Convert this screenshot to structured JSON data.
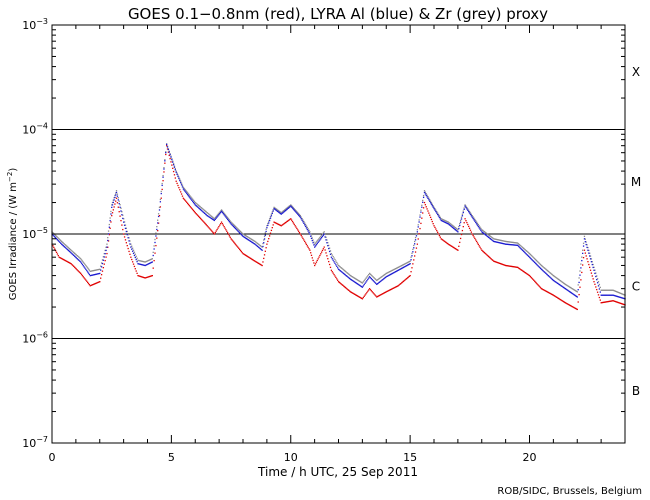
{
  "chart_data": {
    "type": "line",
    "title": "GOES 0.1−0.8nm (red), LYRA Al (blue) & Zr (grey) proxy",
    "xlabel": "Time / h UTC, 25 Sep 2011",
    "ylabel_parts": [
      "GOES Irradiance / (W m",
      "−2",
      ")"
    ],
    "credit": "ROB/SIDC, Brussels, Belgium",
    "x_range": [
      0,
      24
    ],
    "y_range_log10": [
      -7,
      -3
    ],
    "x_ticks": [
      {
        "value": 0,
        "label": "0"
      },
      {
        "value": 5,
        "label": "5"
      },
      {
        "value": 10,
        "label": "10"
      },
      {
        "value": 15,
        "label": "15"
      },
      {
        "value": 20,
        "label": "20"
      }
    ],
    "y_ticks": [
      {
        "exp": -3,
        "base": "10",
        "sup": "−3"
      },
      {
        "exp": -4,
        "base": "10",
        "sup": "−4"
      },
      {
        "exp": -5,
        "base": "10",
        "sup": "−5"
      },
      {
        "exp": -6,
        "base": "10",
        "sup": "−6"
      },
      {
        "exp": -7,
        "base": "10",
        "sup": "−7"
      }
    ],
    "threshold_lines_log10": [
      -4,
      -5,
      -6
    ],
    "flare_classes": [
      {
        "label": "X",
        "log10": -3.45
      },
      {
        "label": "M",
        "log10": -4.5
      },
      {
        "label": "C",
        "log10": -5.5
      },
      {
        "label": "B",
        "log10": -6.5
      }
    ],
    "series": [
      {
        "name": "GOES 0.1-0.8nm",
        "color": "#e00000",
        "points": [
          [
            0,
            8e-06
          ],
          [
            0.3,
            6e-06
          ],
          [
            0.8,
            5.2e-06
          ],
          [
            1.2,
            4.2e-06
          ],
          [
            1.6,
            3.2e-06
          ],
          [
            2.0,
            3.5e-06
          ],
          [
            2.3,
            6.5e-06
          ],
          [
            2.5,
            1.5e-05
          ],
          [
            2.7,
            2.2e-05
          ],
          [
            3.0,
            1e-05
          ],
          [
            3.3,
            6e-06
          ],
          [
            3.6,
            4e-06
          ],
          [
            3.9,
            3.8e-06
          ],
          [
            4.2,
            4e-06
          ],
          [
            4.5,
            1.5e-05
          ],
          [
            4.8,
            7e-05
          ],
          [
            5.2,
            3.2e-05
          ],
          [
            5.5,
            2.2e-05
          ],
          [
            6.0,
            1.6e-05
          ],
          [
            6.5,
            1.2e-05
          ],
          [
            6.8,
            1e-05
          ],
          [
            7.1,
            1.3e-05
          ],
          [
            7.5,
            9e-06
          ],
          [
            8.0,
            6.5e-06
          ],
          [
            8.5,
            5.5e-06
          ],
          [
            8.8,
            5e-06
          ],
          [
            9.0,
            8e-06
          ],
          [
            9.3,
            1.3e-05
          ],
          [
            9.6,
            1.2e-05
          ],
          [
            10.0,
            1.4e-05
          ],
          [
            10.4,
            1e-05
          ],
          [
            10.8,
            7e-06
          ],
          [
            11.0,
            5e-06
          ],
          [
            11.4,
            7.5e-06
          ],
          [
            11.7,
            4.5e-06
          ],
          [
            12.0,
            3.5e-06
          ],
          [
            12.5,
            2.8e-06
          ],
          [
            13.0,
            2.4e-06
          ],
          [
            13.3,
            3e-06
          ],
          [
            13.6,
            2.5e-06
          ],
          [
            14.0,
            2.8e-06
          ],
          [
            14.5,
            3.2e-06
          ],
          [
            15.0,
            4e-06
          ],
          [
            15.3,
            8e-06
          ],
          [
            15.6,
            2e-05
          ],
          [
            16.0,
            1.2e-05
          ],
          [
            16.3,
            9e-06
          ],
          [
            16.6,
            8e-06
          ],
          [
            17.0,
            7e-06
          ],
          [
            17.3,
            1.4e-05
          ],
          [
            17.6,
            1e-05
          ],
          [
            18.0,
            7e-06
          ],
          [
            18.5,
            5.5e-06
          ],
          [
            19.0,
            5e-06
          ],
          [
            19.5,
            4.8e-06
          ],
          [
            20.0,
            4e-06
          ],
          [
            20.5,
            3e-06
          ],
          [
            21.0,
            2.6e-06
          ],
          [
            21.5,
            2.2e-06
          ],
          [
            22.0,
            1.9e-06
          ],
          [
            22.3,
            7e-06
          ],
          [
            22.7,
            3.5e-06
          ],
          [
            23.0,
            2.2e-06
          ],
          [
            23.5,
            2.3e-06
          ],
          [
            24.0,
            2.1e-06
          ]
        ]
      },
      {
        "name": "LYRA Zr proxy",
        "color": "#8c8c8c",
        "points": [
          [
            0,
            1.05e-05
          ],
          [
            0.4,
            8.5e-06
          ],
          [
            0.8,
            7e-06
          ],
          [
            1.2,
            5.8e-06
          ],
          [
            1.6,
            4.4e-06
          ],
          [
            2.0,
            4.6e-06
          ],
          [
            2.3,
            8e-06
          ],
          [
            2.5,
            1.9e-05
          ],
          [
            2.7,
            2.6e-05
          ],
          [
            3.0,
            1.4e-05
          ],
          [
            3.3,
            8e-06
          ],
          [
            3.6,
            5.6e-06
          ],
          [
            3.9,
            5.4e-06
          ],
          [
            4.2,
            5.8e-06
          ],
          [
            4.5,
            1.8e-05
          ],
          [
            4.8,
            7.3e-05
          ],
          [
            5.2,
            4e-05
          ],
          [
            5.5,
            2.8e-05
          ],
          [
            6.0,
            2e-05
          ],
          [
            6.5,
            1.6e-05
          ],
          [
            6.8,
            1.4e-05
          ],
          [
            7.1,
            1.7e-05
          ],
          [
            7.5,
            1.3e-05
          ],
          [
            8.0,
            1e-05
          ],
          [
            8.5,
            8.5e-06
          ],
          [
            8.8,
            7.5e-06
          ],
          [
            9.0,
            1.2e-05
          ],
          [
            9.3,
            1.8e-05
          ],
          [
            9.6,
            1.6e-05
          ],
          [
            10.0,
            1.9e-05
          ],
          [
            10.4,
            1.5e-05
          ],
          [
            10.8,
            1.05e-05
          ],
          [
            11.0,
            8e-06
          ],
          [
            11.4,
            1.05e-05
          ],
          [
            11.7,
            6.5e-06
          ],
          [
            12.0,
            5e-06
          ],
          [
            12.5,
            4e-06
          ],
          [
            13.0,
            3.4e-06
          ],
          [
            13.3,
            4.2e-06
          ],
          [
            13.6,
            3.6e-06
          ],
          [
            14.0,
            4.2e-06
          ],
          [
            14.5,
            4.8e-06
          ],
          [
            15.0,
            5.5e-06
          ],
          [
            15.3,
            1.1e-05
          ],
          [
            15.6,
            2.6e-05
          ],
          [
            16.0,
            1.8e-05
          ],
          [
            16.3,
            1.4e-05
          ],
          [
            16.6,
            1.3e-05
          ],
          [
            17.0,
            1.1e-05
          ],
          [
            17.3,
            1.9e-05
          ],
          [
            17.6,
            1.5e-05
          ],
          [
            18.0,
            1.1e-05
          ],
          [
            18.5,
            9e-06
          ],
          [
            19.0,
            8.5e-06
          ],
          [
            19.5,
            8.2e-06
          ],
          [
            20.0,
            6.5e-06
          ],
          [
            20.5,
            5e-06
          ],
          [
            21.0,
            4e-06
          ],
          [
            21.5,
            3.3e-06
          ],
          [
            22.0,
            2.8e-06
          ],
          [
            22.3,
            9.5e-06
          ],
          [
            22.7,
            4.8e-06
          ],
          [
            23.0,
            2.9e-06
          ],
          [
            23.5,
            2.9e-06
          ],
          [
            24.0,
            2.6e-06
          ]
        ]
      },
      {
        "name": "LYRA Al proxy",
        "color": "#1a1ad0",
        "points": [
          [
            0,
            1e-05
          ],
          [
            0.4,
            8e-06
          ],
          [
            0.8,
            6.6e-06
          ],
          [
            1.2,
            5.4e-06
          ],
          [
            1.6,
            4e-06
          ],
          [
            2.0,
            4.2e-06
          ],
          [
            2.3,
            7.5e-06
          ],
          [
            2.5,
            1.8e-05
          ],
          [
            2.7,
            2.5e-05
          ],
          [
            3.0,
            1.3e-05
          ],
          [
            3.3,
            7.5e-06
          ],
          [
            3.6,
            5.2e-06
          ],
          [
            3.9,
            5e-06
          ],
          [
            4.2,
            5.4e-06
          ],
          [
            4.5,
            1.7e-05
          ],
          [
            4.8,
            7.2e-05
          ],
          [
            5.2,
            3.9e-05
          ],
          [
            5.5,
            2.7e-05
          ],
          [
            6.0,
            1.9e-05
          ],
          [
            6.5,
            1.5e-05
          ],
          [
            6.8,
            1.35e-05
          ],
          [
            7.1,
            1.65e-05
          ],
          [
            7.5,
            1.25e-05
          ],
          [
            8.0,
            9.5e-06
          ],
          [
            8.5,
            8e-06
          ],
          [
            8.8,
            7e-06
          ],
          [
            9.0,
            1.15e-05
          ],
          [
            9.3,
            1.75e-05
          ],
          [
            9.6,
            1.55e-05
          ],
          [
            10.0,
            1.85e-05
          ],
          [
            10.4,
            1.45e-05
          ],
          [
            10.8,
            1e-05
          ],
          [
            11.0,
            7.5e-06
          ],
          [
            11.4,
            1e-05
          ],
          [
            11.7,
            6e-06
          ],
          [
            12.0,
            4.6e-06
          ],
          [
            12.5,
            3.7e-06
          ],
          [
            13.0,
            3.1e-06
          ],
          [
            13.3,
            3.9e-06
          ],
          [
            13.6,
            3.3e-06
          ],
          [
            14.0,
            3.9e-06
          ],
          [
            14.5,
            4.5e-06
          ],
          [
            15.0,
            5.2e-06
          ],
          [
            15.3,
            1.05e-05
          ],
          [
            15.6,
            2.5e-05
          ],
          [
            16.0,
            1.75e-05
          ],
          [
            16.3,
            1.35e-05
          ],
          [
            16.6,
            1.25e-05
          ],
          [
            17.0,
            1.05e-05
          ],
          [
            17.3,
            1.85e-05
          ],
          [
            17.6,
            1.45e-05
          ],
          [
            18.0,
            1.05e-05
          ],
          [
            18.5,
            8.5e-06
          ],
          [
            19.0,
            8e-06
          ],
          [
            19.5,
            7.8e-06
          ],
          [
            20.0,
            6e-06
          ],
          [
            20.5,
            4.6e-06
          ],
          [
            21.0,
            3.6e-06
          ],
          [
            21.5,
            3e-06
          ],
          [
            22.0,
            2.5e-06
          ],
          [
            22.3,
            9e-06
          ],
          [
            22.7,
            4.5e-06
          ],
          [
            23.0,
            2.6e-06
          ],
          [
            23.5,
            2.6e-06
          ],
          [
            24.0,
            2.4e-06
          ]
        ]
      }
    ]
  }
}
